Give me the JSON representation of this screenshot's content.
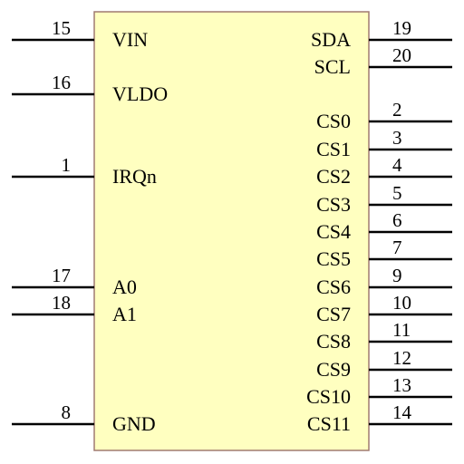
{
  "colors": {
    "body_fill": "#ffffc0",
    "body_stroke": "#a07a70",
    "pin_line": "#000000",
    "text": "#000000"
  },
  "left_pins": [
    {
      "label": "VIN",
      "number": "15"
    },
    {
      "label": "VLDO",
      "number": "16"
    },
    {
      "label": "IRQn",
      "number": "1"
    },
    {
      "label": "A0",
      "number": "17"
    },
    {
      "label": "A1",
      "number": "18"
    },
    {
      "label": "GND",
      "number": "8"
    }
  ],
  "right_pins": [
    {
      "label": "SDA",
      "number": "19"
    },
    {
      "label": "SCL",
      "number": "20"
    },
    {
      "label": "CS0",
      "number": "2"
    },
    {
      "label": "CS1",
      "number": "3"
    },
    {
      "label": "CS2",
      "number": "4"
    },
    {
      "label": "CS3",
      "number": "5"
    },
    {
      "label": "CS4",
      "number": "6"
    },
    {
      "label": "CS5",
      "number": "7"
    },
    {
      "label": "CS6",
      "number": "9"
    },
    {
      "label": "CS7",
      "number": "10"
    },
    {
      "label": "CS8",
      "number": "11"
    },
    {
      "label": "CS9",
      "number": "12"
    },
    {
      "label": "CS10",
      "number": "13"
    },
    {
      "label": "CS11",
      "number": "14"
    }
  ]
}
